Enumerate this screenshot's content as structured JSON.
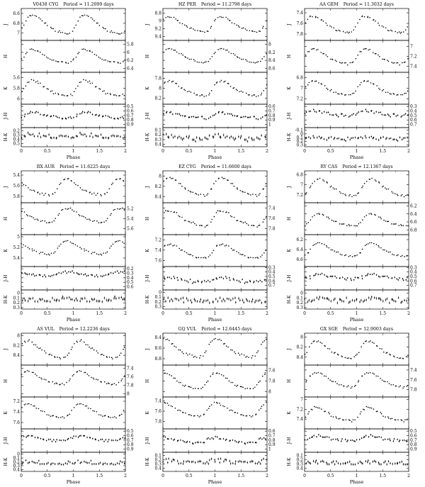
{
  "figure": {
    "background": "#ffffff",
    "ink": "#000000",
    "columns": 3,
    "rows": 3,
    "xlabel": "Phase",
    "xlim": [
      0,
      2
    ],
    "x_tick_values": [
      0,
      0.5,
      1,
      1.5,
      2
    ],
    "x_tick_labels": [
      "0",
      "0.5",
      "1",
      "1.5",
      "2"
    ],
    "lightcurve_template": [
      [
        0.0,
        -0.5
      ],
      [
        0.04,
        -0.49
      ],
      [
        0.08,
        -0.45
      ],
      [
        0.12,
        -0.38
      ],
      [
        0.16,
        -0.29
      ],
      [
        0.2,
        -0.19
      ],
      [
        0.25,
        -0.07
      ],
      [
        0.3,
        0.05
      ],
      [
        0.35,
        0.15
      ],
      [
        0.4,
        0.24
      ],
      [
        0.45,
        0.31
      ],
      [
        0.5,
        0.37
      ],
      [
        0.55,
        0.42
      ],
      [
        0.6,
        0.46
      ],
      [
        0.65,
        0.49
      ],
      [
        0.7,
        0.5
      ],
      [
        0.74,
        0.47
      ],
      [
        0.78,
        0.38
      ],
      [
        0.82,
        0.22
      ],
      [
        0.86,
        0.0
      ],
      [
        0.9,
        -0.22
      ],
      [
        0.94,
        -0.38
      ],
      [
        0.97,
        -0.46
      ],
      [
        1.0,
        -0.5
      ]
    ]
  },
  "chart_data": [
    {
      "type": "scatter",
      "name": "V0438 CYG",
      "period_label": "Period = 11.2099 days",
      "phase_of_max": 0.2,
      "bands": [
        {
          "label": "J",
          "tick_side": "left",
          "ticks": [
            6.6,
            6.8,
            7
          ],
          "ylim": [
            6.5,
            7.15
          ],
          "mean": 6.82,
          "amplitude": 0.38,
          "scatter": 0.011,
          "errorbar": 0
        },
        {
          "label": "H",
          "tick_side": "right",
          "ticks": [
            5.8,
            6,
            6.2,
            6.4
          ],
          "ylim": [
            5.7,
            6.5
          ],
          "mean": 6.1,
          "amplitude": 0.33,
          "scatter": 0.011,
          "errorbar": 0
        },
        {
          "label": "K",
          "tick_side": "left",
          "ticks": [
            5.6,
            5.8,
            6
          ],
          "ylim": [
            5.5,
            6.1
          ],
          "mean": 5.8,
          "amplitude": 0.3,
          "scatter": 0.011,
          "errorbar": 0
        },
        {
          "label": "J-H",
          "tick_side": "right",
          "ticks": [
            0.5,
            0.6,
            0.7,
            0.8,
            0.9
          ],
          "ylim": [
            0.45,
            0.97
          ],
          "mean": 0.7,
          "amplitude": 0.12,
          "scatter": 0.018,
          "errorbar": 0.02
        },
        {
          "label": "H-K",
          "tick_side": "left",
          "ticks": [
            0.2,
            0.3,
            0.4,
            0.5
          ],
          "ylim": [
            0.13,
            0.57
          ],
          "mean": 0.33,
          "amplitude": 0.05,
          "scatter": 0.025,
          "errorbar": 0.03
        }
      ]
    },
    {
      "type": "scatter",
      "name": "HZ PER",
      "period_label": "Period = 11.2798 days",
      "phase_of_max": 0.1,
      "bands": [
        {
          "label": "J",
          "tick_side": "left",
          "ticks": [
            8.8,
            9,
            9.2,
            9.4
          ],
          "ylim": [
            8.68,
            9.5
          ],
          "mean": 9.08,
          "amplitude": 0.4,
          "scatter": 0.011,
          "errorbar": 0
        },
        {
          "label": "H",
          "tick_side": "right",
          "ticks": [
            8,
            8.2,
            8.4,
            8.6
          ],
          "ylim": [
            7.9,
            8.7
          ],
          "mean": 8.28,
          "amplitude": 0.35,
          "scatter": 0.011,
          "errorbar": 0
        },
        {
          "label": "K",
          "tick_side": "left",
          "ticks": [
            7.8,
            8,
            8.2
          ],
          "ylim": [
            7.68,
            8.32
          ],
          "mean": 8.0,
          "amplitude": 0.3,
          "scatter": 0.011,
          "errorbar": 0
        },
        {
          "label": "J-H",
          "tick_side": "right",
          "ticks": [
            0.6,
            0.7,
            0.8,
            0.9,
            1
          ],
          "ylim": [
            0.55,
            1.07
          ],
          "mean": 0.8,
          "amplitude": 0.12,
          "scatter": 0.018,
          "errorbar": 0.02
        },
        {
          "label": "H-K",
          "tick_side": "left",
          "ticks": [
            0.1,
            0.2,
            0.3,
            0.4
          ],
          "ylim": [
            0.05,
            0.45
          ],
          "mean": 0.26,
          "amplitude": 0.05,
          "scatter": 0.025,
          "errorbar": 0.03
        }
      ]
    },
    {
      "type": "scatter",
      "name": "AA GEM",
      "period_label": "Period = 11.3032 days",
      "phase_of_max": 0.15,
      "bands": [
        {
          "label": "J",
          "tick_side": "left",
          "ticks": [
            7.4,
            7.6,
            7.8
          ],
          "ylim": [
            7.32,
            7.92
          ],
          "mean": 7.62,
          "amplitude": 0.32,
          "scatter": 0.011,
          "errorbar": 0
        },
        {
          "label": "H",
          "tick_side": "right",
          "ticks": [
            7,
            7.2,
            7.4
          ],
          "ylim": [
            6.88,
            7.52
          ],
          "mean": 7.2,
          "amplitude": 0.3,
          "scatter": 0.011,
          "errorbar": 0
        },
        {
          "label": "K",
          "tick_side": "left",
          "ticks": [
            6.8,
            7,
            7.2
          ],
          "ylim": [
            6.7,
            7.3
          ],
          "mean": 7.0,
          "amplitude": 0.26,
          "scatter": 0.011,
          "errorbar": 0
        },
        {
          "label": "J-H",
          "tick_side": "right",
          "ticks": [
            0.3,
            0.4,
            0.5,
            0.6,
            0.7
          ],
          "ylim": [
            0.25,
            0.77
          ],
          "mean": 0.45,
          "amplitude": 0.1,
          "scatter": 0.018,
          "errorbar": 0.02
        },
        {
          "label": "H-K",
          "tick_side": "left",
          "ticks": [
            -0.1,
            0,
            0.1,
            0.2,
            0.3
          ],
          "ylim": [
            -0.17,
            0.35
          ],
          "mean": 0.12,
          "amplitude": 0.05,
          "scatter": 0.025,
          "errorbar": 0.03
        }
      ]
    },
    {
      "type": "scatter",
      "name": "RX AUR",
      "period_label": "Period = 11.6225 days",
      "phase_of_max": 0.85,
      "bands": [
        {
          "label": "J",
          "tick_side": "left",
          "ticks": [
            5.4,
            5.6,
            5.8
          ],
          "ylim": [
            5.32,
            5.92
          ],
          "mean": 5.63,
          "amplitude": 0.3,
          "scatter": 0.011,
          "errorbar": 0
        },
        {
          "label": "H",
          "tick_side": "right",
          "ticks": [
            5.2,
            5.4,
            5.6
          ],
          "ylim": [
            5.08,
            5.72
          ],
          "mean": 5.33,
          "amplitude": 0.28,
          "scatter": 0.011,
          "errorbar": 0
        },
        {
          "label": "K",
          "tick_side": "left",
          "ticks": [
            5,
            5.2,
            5.4
          ],
          "ylim": [
            4.96,
            5.56
          ],
          "mean": 5.2,
          "amplitude": 0.26,
          "scatter": 0.011,
          "errorbar": 0
        },
        {
          "label": "J-H",
          "tick_side": "right",
          "ticks": [
            0.2,
            0.3,
            0.4,
            0.5,
            0.6
          ],
          "ylim": [
            0.15,
            0.67
          ],
          "mean": 0.31,
          "amplitude": 0.1,
          "scatter": 0.018,
          "errorbar": 0.02
        },
        {
          "label": "H-K",
          "tick_side": "left",
          "ticks": [
            0,
            0.1,
            0.2,
            0.3
          ],
          "ylim": [
            -0.07,
            0.33
          ],
          "mean": 0.13,
          "amplitude": 0.04,
          "scatter": 0.025,
          "errorbar": 0.03
        }
      ]
    },
    {
      "type": "scatter",
      "name": "EZ CYG",
      "period_label": "Period = 11.6600 days",
      "phase_of_max": 0.1,
      "bands": [
        {
          "label": "J",
          "tick_side": "left",
          "ticks": [
            8,
            8.2,
            8.4
          ],
          "ylim": [
            7.9,
            8.52
          ],
          "mean": 8.2,
          "amplitude": 0.35,
          "scatter": 0.011,
          "errorbar": 0
        },
        {
          "label": "H",
          "tick_side": "right",
          "ticks": [
            7.4,
            7.6,
            7.8
          ],
          "ylim": [
            7.3,
            7.92
          ],
          "mean": 7.6,
          "amplitude": 0.3,
          "scatter": 0.011,
          "errorbar": 0
        },
        {
          "label": "K",
          "tick_side": "left",
          "ticks": [
            7.2,
            7.4,
            7.6
          ],
          "ylim": [
            7.1,
            7.72
          ],
          "mean": 7.42,
          "amplitude": 0.27,
          "scatter": 0.011,
          "errorbar": 0
        },
        {
          "label": "J-H",
          "tick_side": "right",
          "ticks": [
            0.3,
            0.4,
            0.5,
            0.6,
            0.7
          ],
          "ylim": [
            0.28,
            0.8
          ],
          "mean": 0.57,
          "amplitude": 0.1,
          "scatter": 0.018,
          "errorbar": 0.02
        },
        {
          "label": "H-K",
          "tick_side": "left",
          "ticks": [
            0,
            0.1,
            0.2,
            0.3
          ],
          "ylim": [
            -0.05,
            0.35
          ],
          "mean": 0.17,
          "amplitude": 0.04,
          "scatter": 0.025,
          "errorbar": 0.03
        }
      ]
    },
    {
      "type": "scatter",
      "name": "RY CAS",
      "period_label": "Period = 12.1367 days",
      "phase_of_max": 0.25,
      "bands": [
        {
          "label": "J",
          "tick_side": "left",
          "ticks": [
            6.8,
            7,
            7.2
          ],
          "ylim": [
            6.72,
            7.36
          ],
          "mean": 7.05,
          "amplitude": 0.34,
          "scatter": 0.011,
          "errorbar": 0
        },
        {
          "label": "H",
          "tick_side": "right",
          "ticks": [
            6.2,
            6.4,
            6.6,
            6.8
          ],
          "ylim": [
            6.12,
            6.92
          ],
          "mean": 6.55,
          "amplitude": 0.3,
          "scatter": 0.011,
          "errorbar": 0
        },
        {
          "label": "K",
          "tick_side": "left",
          "ticks": [
            6.2,
            6.4,
            6.6
          ],
          "ylim": [
            6.1,
            6.74
          ],
          "mean": 6.4,
          "amplitude": 0.27,
          "scatter": 0.011,
          "errorbar": 0
        },
        {
          "label": "J-H",
          "tick_side": "right",
          "ticks": [
            0.3,
            0.4,
            0.5,
            0.6,
            0.7
          ],
          "ylim": [
            0.28,
            0.8
          ],
          "mean": 0.5,
          "amplitude": 0.1,
          "scatter": 0.018,
          "errorbar": 0.02
        },
        {
          "label": "H-K",
          "tick_side": "left",
          "ticks": [
            0,
            0.1,
            0.2,
            0.3
          ],
          "ylim": [
            -0.07,
            0.33
          ],
          "mean": 0.14,
          "amplitude": 0.04,
          "scatter": 0.025,
          "errorbar": 0.03
        }
      ]
    },
    {
      "type": "scatter",
      "name": "AS VUL",
      "period_label": "Period = 12.2236 days",
      "phase_of_max": 0.1,
      "bands": [
        {
          "label": "J",
          "tick_side": "left",
          "ticks": [
            8,
            8.2,
            8.4
          ],
          "ylim": [
            7.95,
            8.6
          ],
          "mean": 8.28,
          "amplitude": 0.36,
          "scatter": 0.011,
          "errorbar": 0
        },
        {
          "label": "H",
          "tick_side": "right",
          "ticks": [
            7.4,
            7.6,
            7.8,
            8
          ],
          "ylim": [
            7.32,
            8.08
          ],
          "mean": 7.62,
          "amplitude": 0.32,
          "scatter": 0.011,
          "errorbar": 0
        },
        {
          "label": "K",
          "tick_side": "left",
          "ticks": [
            7.2,
            7.4,
            7.6
          ],
          "ylim": [
            7.12,
            7.72
          ],
          "mean": 7.38,
          "amplitude": 0.28,
          "scatter": 0.011,
          "errorbar": 0
        },
        {
          "label": "J-H",
          "tick_side": "right",
          "ticks": [
            0.5,
            0.6,
            0.7,
            0.8,
            0.9
          ],
          "ylim": [
            0.45,
            0.97
          ],
          "mean": 0.66,
          "amplitude": 0.11,
          "scatter": 0.018,
          "errorbar": 0.02
        },
        {
          "label": "H-K",
          "tick_side": "left",
          "ticks": [
            0,
            0.1,
            0.2,
            0.3,
            0.4
          ],
          "ylim": [
            -0.05,
            0.45
          ],
          "mean": 0.23,
          "amplitude": 0.05,
          "scatter": 0.025,
          "errorbar": 0.03
        }
      ]
    },
    {
      "type": "scatter",
      "name": "GQ VUL",
      "period_label": "Period = 12.6445 days",
      "phase_of_max": 0.0,
      "bands": [
        {
          "label": "J",
          "tick_side": "left",
          "ticks": [
            8.4,
            8.6,
            8.8
          ],
          "ylim": [
            8.32,
            8.92
          ],
          "mean": 8.6,
          "amplitude": 0.34,
          "scatter": 0.011,
          "errorbar": 0
        },
        {
          "label": "H",
          "tick_side": "right",
          "ticks": [
            7.6,
            7.8,
            8
          ],
          "ylim": [
            7.5,
            8.1
          ],
          "mean": 7.8,
          "amplitude": 0.3,
          "scatter": 0.011,
          "errorbar": 0
        },
        {
          "label": "K",
          "tick_side": "left",
          "ticks": [
            7.4,
            7.6,
            7.8
          ],
          "ylim": [
            7.32,
            7.95
          ],
          "mean": 7.57,
          "amplitude": 0.27,
          "scatter": 0.011,
          "errorbar": 0
        },
        {
          "label": "J-H",
          "tick_side": "right",
          "ticks": [
            0.6,
            0.7,
            0.8,
            0.9,
            1
          ],
          "ylim": [
            0.55,
            1.07
          ],
          "mean": 0.8,
          "amplitude": 0.12,
          "scatter": 0.018,
          "errorbar": 0.02
        },
        {
          "label": "H-K",
          "tick_side": "left",
          "ticks": [
            0.1,
            0.2,
            0.3,
            0.4
          ],
          "ylim": [
            0.03,
            0.47
          ],
          "mean": 0.24,
          "amplitude": 0.05,
          "scatter": 0.025,
          "errorbar": 0.03
        }
      ]
    },
    {
      "type": "scatter",
      "name": "GX SGE",
      "period_label": "Period = 12.9003 days",
      "phase_of_max": 0.2,
      "bands": [
        {
          "label": "J",
          "tick_side": "left",
          "ticks": [
            8,
            8.2,
            8.4
          ],
          "ylim": [
            7.92,
            8.56
          ],
          "mean": 8.25,
          "amplitude": 0.34,
          "scatter": 0.011,
          "errorbar": 0
        },
        {
          "label": "H",
          "tick_side": "right",
          "ticks": [
            7.4,
            7.6,
            7.8
          ],
          "ylim": [
            7.3,
            7.95
          ],
          "mean": 7.6,
          "amplitude": 0.3,
          "scatter": 0.011,
          "errorbar": 0
        },
        {
          "label": "K",
          "tick_side": "left",
          "ticks": [
            7,
            7.2,
            7.4
          ],
          "ylim": [
            6.95,
            7.6
          ],
          "mean": 7.3,
          "amplitude": 0.27,
          "scatter": 0.011,
          "errorbar": 0
        },
        {
          "label": "J-H",
          "tick_side": "right",
          "ticks": [
            0.5,
            0.6,
            0.7,
            0.8,
            0.9
          ],
          "ylim": [
            0.45,
            0.97
          ],
          "mean": 0.66,
          "amplitude": 0.11,
          "scatter": 0.018,
          "errorbar": 0.02
        },
        {
          "label": "H-K",
          "tick_side": "left",
          "ticks": [
            0.1,
            0.2,
            0.3,
            0.4
          ],
          "ylim": [
            0.03,
            0.47
          ],
          "mean": 0.27,
          "amplitude": 0.05,
          "scatter": 0.025,
          "errorbar": 0.03
        }
      ]
    }
  ]
}
